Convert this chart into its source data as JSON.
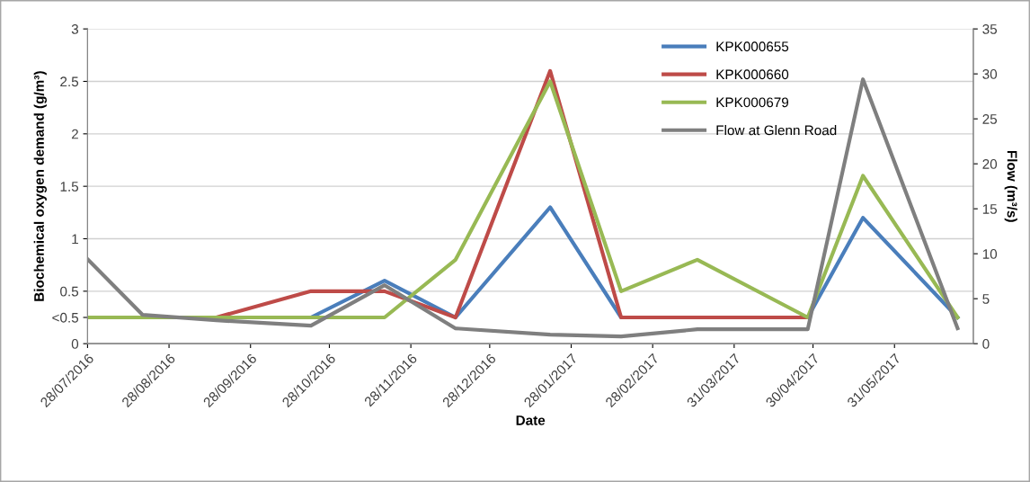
{
  "chart_data": {
    "type": "line",
    "xlabel": "Date",
    "ylabel": "Biochemical oxygen demand (g/m³)",
    "y2label": "Flow (m³/s)",
    "x": [
      "2016-07-28",
      "2016-08-18",
      "2016-09-15",
      "2016-10-21",
      "2016-11-18",
      "2016-12-15",
      "2017-01-20",
      "2017-02-16",
      "2017-03-17",
      "2017-04-28",
      "2017-05-19",
      "2017-06-24"
    ],
    "xlim": [
      "2016-07-28",
      "2017-06-30"
    ],
    "xticks": [
      {
        "value": "2016-07-28",
        "label": "28/07/2016"
      },
      {
        "value": "2016-08-28",
        "label": "28/08/2016"
      },
      {
        "value": "2016-09-28",
        "label": "28/09/2016"
      },
      {
        "value": "2016-10-28",
        "label": "28/10/2016"
      },
      {
        "value": "2016-11-28",
        "label": "28/11/2016"
      },
      {
        "value": "2016-12-28",
        "label": "28/12/2016"
      },
      {
        "value": "2017-01-28",
        "label": "28/01/2017"
      },
      {
        "value": "2017-02-28",
        "label": "28/02/2017"
      },
      {
        "value": "2017-03-31",
        "label": "31/03/2017"
      },
      {
        "value": "2017-04-30",
        "label": "30/04/2017"
      },
      {
        "value": "2017-05-31",
        "label": "31/05/2017"
      }
    ],
    "ylim": [
      0,
      3
    ],
    "yticks": [
      0,
      {
        "value": 0.25,
        "label": "<0.5"
      },
      0.5,
      1,
      1.5,
      2,
      2.5,
      3
    ],
    "y2lim": [
      0,
      35
    ],
    "y2ticks": [
      0,
      5,
      10,
      15,
      20,
      25,
      30,
      35
    ],
    "grid": "y",
    "legend": "top right",
    "marker": "none",
    "line_style": "solid",
    "series": [
      {
        "name": "KPK000655",
        "color": "#4a7ebb",
        "values": [
          null,
          null,
          0.25,
          0.25,
          0.6,
          0.25,
          1.3,
          0.25,
          0.25,
          0.25,
          1.2,
          0.25
        ]
      },
      {
        "name": "KPK000660",
        "color": "#be4b48",
        "values": [
          0.25,
          0.25,
          0.25,
          0.5,
          0.5,
          0.25,
          2.6,
          0.25,
          0.25,
          0.25,
          null,
          null
        ]
      },
      {
        "name": "KPK000679",
        "color": "#98b954",
        "values": [
          0.25,
          0.25,
          0.25,
          0.25,
          0.25,
          0.8,
          2.5,
          0.5,
          0.8,
          0.25,
          1.6,
          0.25
        ]
      },
      {
        "name": "Flow at Glenn Road",
        "color": "#7f7f7f",
        "axis": "y2",
        "values": [
          9.4,
          3.2,
          2.6,
          2.0,
          6.5,
          1.7,
          1.0,
          0.8,
          1.6,
          1.6,
          29.4,
          1.7
        ]
      }
    ]
  }
}
